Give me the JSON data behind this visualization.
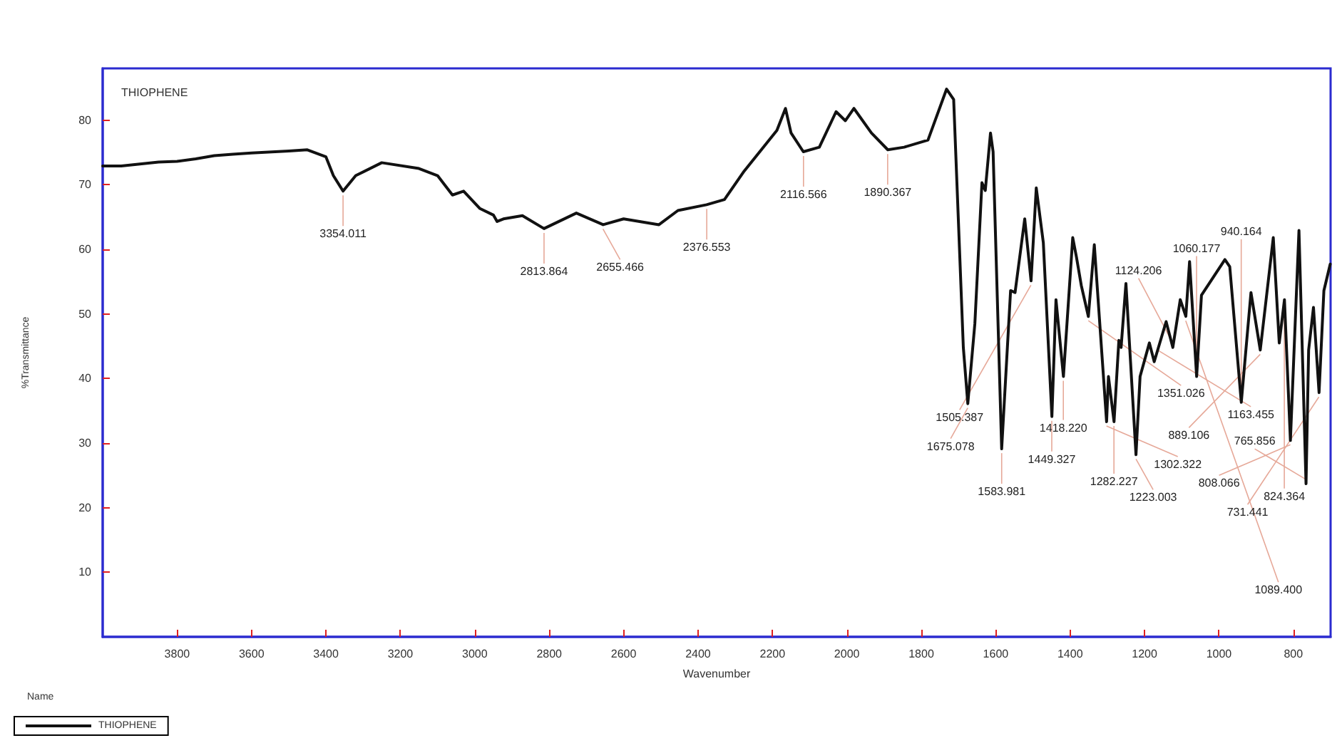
{
  "chart_data": {
    "type": "line",
    "title": "THIOPHENE",
    "xlabel": "Wavenumber",
    "ylabel": "%Transmittance",
    "legend_title": "Name",
    "legend": "bottom left",
    "grid": false,
    "marker": "none",
    "line_style": "solid",
    "xlim": [
      4000,
      700
    ],
    "xticks": [
      3800,
      3600,
      3400,
      3200,
      3000,
      2800,
      2600,
      2400,
      2200,
      2000,
      1800,
      1600,
      1400,
      1200,
      1000,
      800
    ],
    "ylim": [
      0,
      88
    ],
    "yticks": [
      10,
      20,
      30,
      40,
      50,
      60,
      70,
      80
    ],
    "series": [
      {
        "name": "THIOPHENE",
        "color": "#111111",
        "x": [
          4000,
          3950,
          3900,
          3850,
          3800,
          3750,
          3700,
          3650,
          3600,
          3500,
          3450,
          3400,
          3380,
          3354,
          3320,
          3250,
          3150,
          3100,
          3060,
          3030,
          2986,
          2950,
          2940,
          2923,
          2872,
          2814,
          2727,
          2655,
          2600,
          2505,
          2454,
          2377,
          2329,
          2276,
          2188,
          2165,
          2150,
          2117,
          2074,
          2029,
          2004,
          1981,
          1934,
          1890,
          1846,
          1782,
          1732,
          1713,
          1687,
          1675,
          1656,
          1637,
          1628,
          1614,
          1607,
          1584,
          1560,
          1548,
          1522,
          1505,
          1491,
          1472,
          1449,
          1438,
          1418,
          1393,
          1383,
          1370,
          1351,
          1335,
          1302,
          1297,
          1282,
          1269,
          1263,
          1250,
          1223,
          1212,
          1187,
          1174,
          1142,
          1124,
          1104,
          1089,
          1079,
          1060,
          1047,
          984,
          971,
          940,
          914,
          889,
          854,
          838,
          824,
          808,
          785,
          766,
          759,
          746,
          731,
          718,
          701
        ],
        "values": [
          72.9,
          72.9,
          73.2,
          73.5,
          73.6,
          74.0,
          74.5,
          74.7,
          74.9,
          75.2,
          75.4,
          74.3,
          71.4,
          69.0,
          71.4,
          73.4,
          72.5,
          71.4,
          68.4,
          69.0,
          66.3,
          65.3,
          64.3,
          64.7,
          65.2,
          63.2,
          65.6,
          63.8,
          64.7,
          63.8,
          66.0,
          66.9,
          67.7,
          72.1,
          78.4,
          81.8,
          78.0,
          75.1,
          75.8,
          81.3,
          79.9,
          81.8,
          78.0,
          75.4,
          75.8,
          76.9,
          84.8,
          83.2,
          44.8,
          36.1,
          48.5,
          70.3,
          69.1,
          78.0,
          75.1,
          29.1,
          53.6,
          53.3,
          64.7,
          55.1,
          69.5,
          61.0,
          34.1,
          52.2,
          40.3,
          61.8,
          58.8,
          54.4,
          49.6,
          60.7,
          33.3,
          40.3,
          33.3,
          45.9,
          44.8,
          54.7,
          28.2,
          40.3,
          45.5,
          42.6,
          48.8,
          44.8,
          52.2,
          49.6,
          58.1,
          40.3,
          52.9,
          58.4,
          57.3,
          36.3,
          53.3,
          44.4,
          61.8,
          45.5,
          52.2,
          30.4,
          62.9,
          23.7,
          44.4,
          51.0,
          37.8,
          53.6,
          57.7
        ]
      }
    ],
    "annotations": [
      {
        "text": "3354.011",
        "x": 3354.011,
        "y": 69.0
      },
      {
        "text": "2813.864",
        "x": 2813.864,
        "y": 63.2
      },
      {
        "text": "2655.466",
        "x": 2655.466,
        "y": 63.8
      },
      {
        "text": "2376.553",
        "x": 2376.553,
        "y": 66.9
      },
      {
        "text": "2116.566",
        "x": 2116.566,
        "y": 75.1
      },
      {
        "text": "1890.367",
        "x": 1890.367,
        "y": 75.4
      },
      {
        "text": "1675.078",
        "x": 1675.078,
        "y": 36.1
      },
      {
        "text": "1583.981",
        "x": 1583.981,
        "y": 29.1
      },
      {
        "text": "1505.387",
        "x": 1505.387,
        "y": 55.1
      },
      {
        "text": "1449.327",
        "x": 1449.327,
        "y": 34.1
      },
      {
        "text": "1418.220",
        "x": 1418.22,
        "y": 40.3
      },
      {
        "text": "1351.026",
        "x": 1351.026,
        "y": 49.6
      },
      {
        "text": "1302.322",
        "x": 1302.322,
        "y": 33.3
      },
      {
        "text": "1282.227",
        "x": 1282.227,
        "y": 33.3
      },
      {
        "text": "1223.003",
        "x": 1223.003,
        "y": 28.2
      },
      {
        "text": "1163.455",
        "x": 1163.455,
        "y": 45
      },
      {
        "text": "1124.206",
        "x": 1124.206,
        "y": 44.8
      },
      {
        "text": "1089.400",
        "x": 1089.4,
        "y": 49.6
      },
      {
        "text": "1060.177",
        "x": 1060.177,
        "y": 40.3
      },
      {
        "text": "940.164",
        "x": 940.164,
        "y": 36.3
      },
      {
        "text": "889.106",
        "x": 889.106,
        "y": 44.4
      },
      {
        "text": "824.364",
        "x": 824.364,
        "y": 52.2
      },
      {
        "text": "808.066",
        "x": 808.066,
        "y": 30.4
      },
      {
        "text": "765.856",
        "x": 765.856,
        "y": 23.7
      },
      {
        "text": "731.441",
        "x": 731.441,
        "y": 37.8
      }
    ]
  }
}
